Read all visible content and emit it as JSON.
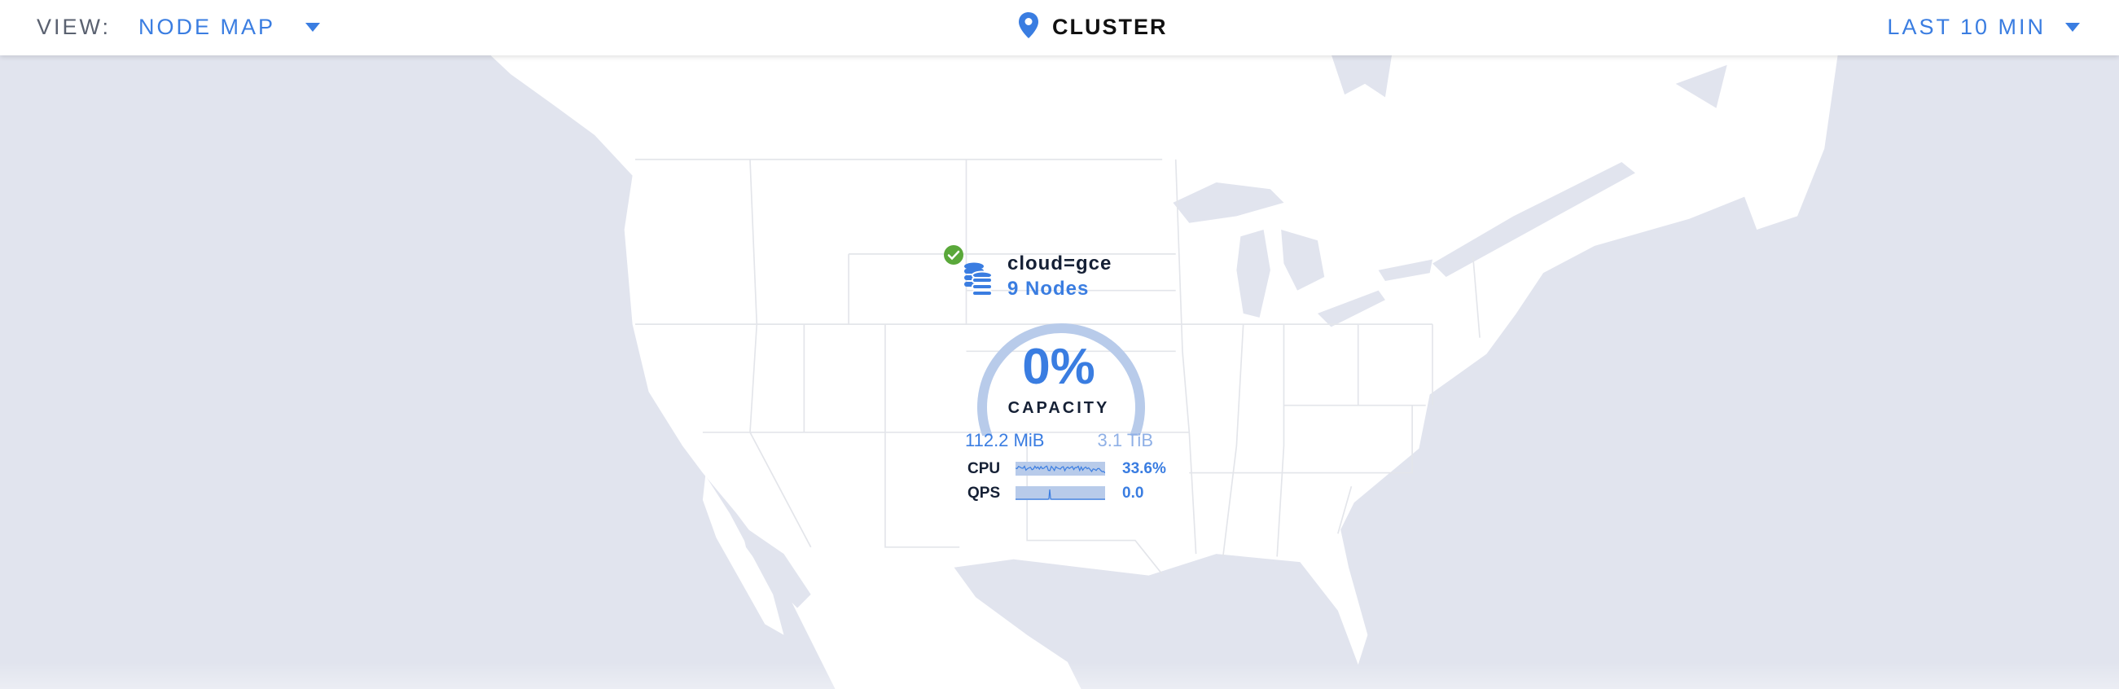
{
  "header": {
    "view_label": "VIEW:",
    "view_value": "NODE MAP",
    "title": "CLUSTER",
    "time_range": "LAST 10 MIN",
    "icons": {
      "view_dropdown": "caret-down-icon",
      "title": "map-pin-icon",
      "time_dropdown": "caret-down-icon"
    }
  },
  "locality": {
    "name": "cloud=gce",
    "nodes": "9 Nodes",
    "status": "healthy",
    "icons": {
      "status": "check-circle-icon",
      "nodes": "database-stack-icon"
    },
    "capacity": {
      "percent_label": "0%",
      "label": "CAPACITY",
      "used": "112.2 MiB",
      "total": "3.1 TiB",
      "fraction": 0
    },
    "metrics": [
      {
        "label": "CPU",
        "value": "33.6%"
      },
      {
        "label": "QPS",
        "value": "0.0"
      }
    ]
  },
  "colors": {
    "accent": "#3a7de1",
    "gauge_track": "#b8cbea",
    "map_water": "#e1e4ee",
    "map_land": "#ffffff",
    "status_ok": "#5aa83a"
  }
}
